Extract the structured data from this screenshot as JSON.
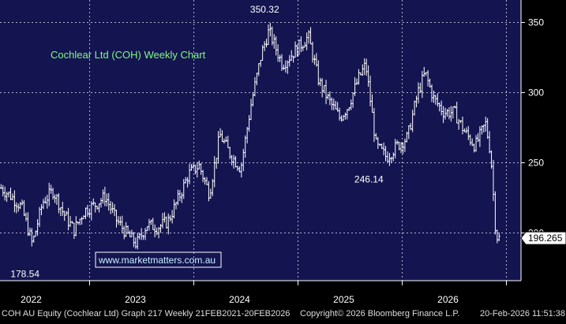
{
  "chart_data": {
    "type": "ohlc",
    "title": "Cochlear Ltd (COH) Weekly Chart",
    "watermark": "www.marketmatters.com.au",
    "footer": {
      "left": "COH AU Equity (Cochlear Ltd) Graph 217 Weekly 21FEB2021-20FEB2026",
      "copyright": "Copyright© 2026 Bloomberg Finance L.P.",
      "timestamp": "20-Feb-2026 11:51:38"
    },
    "x_axis": {
      "ticks": [
        {
          "label": "2022",
          "t": 2022.0
        },
        {
          "label": "2023",
          "t": 2023.0
        },
        {
          "label": "2024",
          "t": 2024.0
        },
        {
          "label": "2025",
          "t": 2025.0
        },
        {
          "label": "2026",
          "t": 2026.0
        }
      ],
      "range": [
        2021.14,
        2026.14
      ]
    },
    "y_axis": {
      "ticks": [
        200,
        250,
        300,
        350
      ],
      "range": [
        166,
        366
      ],
      "position": "right",
      "current_price_label": "196.265"
    },
    "annotations": [
      {
        "text": "350.32",
        "t": 2023.68,
        "value": 350.32
      },
      {
        "text": "246.14",
        "t": 2024.68,
        "value": 246.14
      },
      {
        "text": "178.54",
        "t": 2021.38,
        "value": 178.54
      }
    ],
    "grid": true,
    "colors": {
      "background": "#141450",
      "grid": "#b4b4c8",
      "bars": "#ffffff",
      "title": "#7cfc7c",
      "label": "#ffffff",
      "watermark": "#c8f0ff",
      "footer": "#dcdcdc"
    },
    "series": [
      {
        "points": [
          [
            2021.15,
            232
          ],
          [
            2021.25,
            226
          ],
          [
            2021.35,
            218
          ],
          [
            2021.45,
            192
          ],
          [
            2021.55,
            222
          ],
          [
            2021.65,
            230
          ],
          [
            2021.75,
            214
          ],
          [
            2021.85,
            202
          ],
          [
            2021.95,
            216
          ],
          [
            2022.05,
            220
          ],
          [
            2022.15,
            226
          ],
          [
            2022.25,
            210
          ],
          [
            2022.35,
            200
          ],
          [
            2022.45,
            192
          ],
          [
            2022.55,
            206
          ],
          [
            2022.65,
            204
          ],
          [
            2022.75,
            208
          ],
          [
            2022.85,
            224
          ],
          [
            2022.95,
            242
          ],
          [
            2023.05,
            248
          ],
          [
            2023.15,
            228
          ],
          [
            2023.25,
            270
          ],
          [
            2023.35,
            256
          ],
          [
            2023.45,
            246
          ],
          [
            2023.55,
            292
          ],
          [
            2023.65,
            328
          ],
          [
            2023.72,
            344
          ],
          [
            2023.85,
            320
          ],
          [
            2024.0,
            332
          ],
          [
            2024.1,
            340
          ],
          [
            2024.2,
            308
          ],
          [
            2024.3,
            294
          ],
          [
            2024.4,
            282
          ],
          [
            2024.48,
            290
          ],
          [
            2024.58,
            310
          ],
          [
            2024.65,
            320
          ],
          [
            2024.75,
            262
          ],
          [
            2024.85,
            254
          ],
          [
            2024.95,
            262
          ],
          [
            2025.05,
            268
          ],
          [
            2025.15,
            300
          ],
          [
            2025.22,
            314
          ],
          [
            2025.3,
            296
          ],
          [
            2025.4,
            286
          ],
          [
            2025.5,
            286
          ],
          [
            2025.6,
            272
          ],
          [
            2025.7,
            262
          ],
          [
            2025.8,
            278
          ],
          [
            2025.85,
            256
          ],
          [
            2025.9,
            198
          ],
          [
            2025.93,
            196.265
          ]
        ]
      }
    ]
  }
}
